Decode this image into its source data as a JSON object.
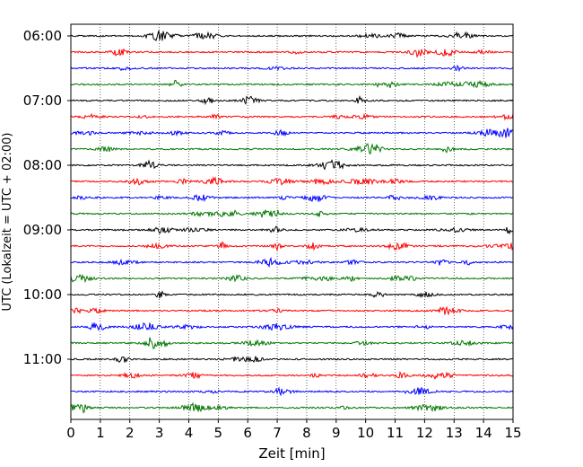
{
  "chart_data": {
    "type": "line",
    "title": "",
    "xlabel": "Zeit  [min]",
    "ylabel": "UTC (Lokalzeit = UTC + 02:00)",
    "xlim": [
      0,
      15
    ],
    "x_ticks": [
      0,
      1,
      2,
      3,
      4,
      5,
      6,
      7,
      8,
      9,
      10,
      11,
      12,
      13,
      14,
      15
    ],
    "y_tick_labels": [
      "06:00",
      "07:00",
      "08:00",
      "09:00",
      "10:00",
      "11:00"
    ],
    "trace_start": "06:00",
    "trace_interval_minutes": 15,
    "trace_count": 24,
    "trace_colors": [
      "#000000",
      "#ff0000",
      "#0000ff",
      "#007700"
    ],
    "grid": "vertical dotted lines at each minute",
    "legend": "none"
  }
}
